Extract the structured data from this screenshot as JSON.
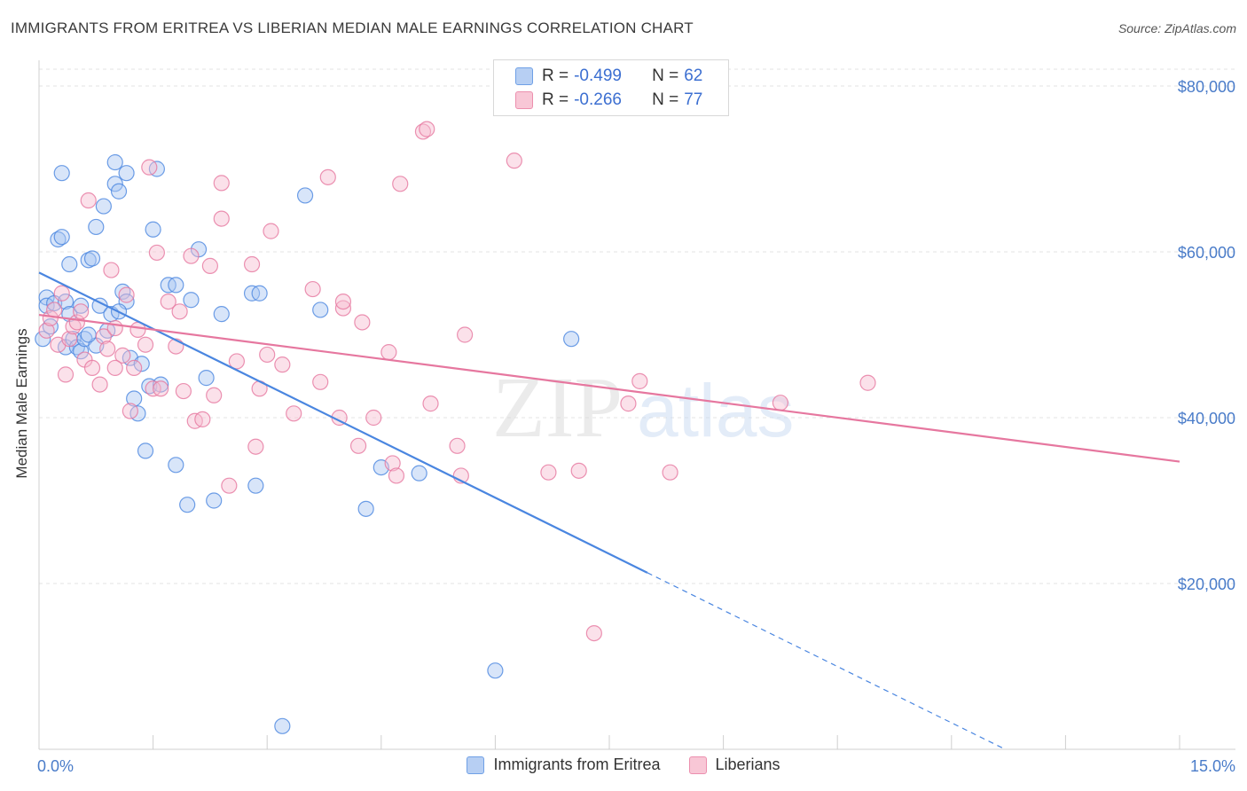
{
  "header": {
    "title": "IMMIGRANTS FROM ERITREA VS LIBERIAN MEDIAN MALE EARNINGS CORRELATION CHART",
    "source": "Source: ZipAtlas.com"
  },
  "watermark": {
    "zip": "ZIP",
    "atlas": "atlas"
  },
  "legend": {
    "rows": [
      {
        "r_label": "R =",
        "r_value": "-0.499",
        "n_label": "N =",
        "n_value": "62",
        "color": "#6fa0e6",
        "fill": "#b7cff3"
      },
      {
        "r_label": "R =",
        "r_value": "-0.266",
        "n_label": "N =",
        "n_value": "77",
        "color": "#ec8fae",
        "fill": "#f8c7d6"
      }
    ]
  },
  "bottom_legend": {
    "items": [
      {
        "label": "Immigrants from Eritrea",
        "color": "#6fa0e6",
        "fill": "#b7cff3"
      },
      {
        "label": "Liberians",
        "color": "#ec8fae",
        "fill": "#f8c7d6"
      }
    ]
  },
  "chart_data": {
    "type": "scatter",
    "title": "IMMIGRANTS FROM ERITREA VS LIBERIAN MEDIAN MALE EARNINGS CORRELATION CHART",
    "xlabel": "",
    "ylabel": "Median Male Earnings",
    "xlim": [
      0,
      15
    ],
    "ylim": [
      0,
      82000
    ],
    "x_tick_labels": [
      "0.0%",
      "15.0%"
    ],
    "y_ticks": [
      20000,
      40000,
      60000,
      80000
    ],
    "y_tick_labels": [
      "$20,000",
      "$40,000",
      "$60,000",
      "$80,000"
    ],
    "grid": true,
    "series": [
      {
        "name": "Immigrants from Eritrea",
        "color": "#4a86e0",
        "fill": "#a9c6f1",
        "trend": {
          "x0": 0,
          "y0": 57500,
          "x1": 8.0,
          "y1": 21300,
          "dash_to_x": 12.7
        },
        "points": [
          [
            0.05,
            49500
          ],
          [
            0.1,
            54500
          ],
          [
            0.1,
            53500
          ],
          [
            0.15,
            51000
          ],
          [
            0.2,
            53800
          ],
          [
            0.25,
            61500
          ],
          [
            0.3,
            61800
          ],
          [
            0.3,
            69500
          ],
          [
            0.35,
            54000
          ],
          [
            0.35,
            48500
          ],
          [
            0.4,
            52500
          ],
          [
            0.4,
            58500
          ],
          [
            0.45,
            49500
          ],
          [
            0.5,
            48500
          ],
          [
            0.55,
            53500
          ],
          [
            0.55,
            48000
          ],
          [
            0.6,
            49500
          ],
          [
            0.65,
            59000
          ],
          [
            0.7,
            59200
          ],
          [
            0.75,
            48700
          ],
          [
            0.75,
            63000
          ],
          [
            0.8,
            53500
          ],
          [
            0.85,
            65500
          ],
          [
            0.9,
            50500
          ],
          [
            0.95,
            52500
          ],
          [
            1.0,
            68200
          ],
          [
            1.0,
            70800
          ],
          [
            1.05,
            67300
          ],
          [
            1.1,
            55200
          ],
          [
            1.15,
            54000
          ],
          [
            1.15,
            69500
          ],
          [
            1.2,
            47200
          ],
          [
            1.25,
            42300
          ],
          [
            1.3,
            40500
          ],
          [
            1.35,
            46500
          ],
          [
            1.4,
            36000
          ],
          [
            1.45,
            43800
          ],
          [
            1.5,
            62700
          ],
          [
            1.55,
            70000
          ],
          [
            1.6,
            44000
          ],
          [
            1.7,
            56000
          ],
          [
            1.8,
            34300
          ],
          [
            1.8,
            56000
          ],
          [
            1.95,
            29500
          ],
          [
            2.0,
            54200
          ],
          [
            2.1,
            60300
          ],
          [
            2.2,
            44800
          ],
          [
            2.3,
            30000
          ],
          [
            2.4,
            52500
          ],
          [
            2.8,
            55000
          ],
          [
            2.85,
            31800
          ],
          [
            2.9,
            55000
          ],
          [
            3.2,
            2800
          ],
          [
            3.5,
            66800
          ],
          [
            3.7,
            53000
          ],
          [
            4.3,
            29000
          ],
          [
            4.5,
            34000
          ],
          [
            5.0,
            33300
          ],
          [
            6.0,
            9500
          ],
          [
            7.0,
            49500
          ],
          [
            1.05,
            52800
          ],
          [
            0.65,
            50000
          ]
        ]
      },
      {
        "name": "Liberians",
        "color": "#e6779f",
        "fill": "#f6bdd0",
        "trend": {
          "x0": 0,
          "y0": 52400,
          "x1": 15,
          "y1": 34700
        },
        "points": [
          [
            0.1,
            50500
          ],
          [
            0.15,
            52000
          ],
          [
            0.2,
            53000
          ],
          [
            0.25,
            48800
          ],
          [
            0.3,
            55000
          ],
          [
            0.35,
            45200
          ],
          [
            0.4,
            49500
          ],
          [
            0.45,
            51000
          ],
          [
            0.5,
            51500
          ],
          [
            0.55,
            52800
          ],
          [
            0.6,
            47000
          ],
          [
            0.65,
            66200
          ],
          [
            0.7,
            46000
          ],
          [
            0.8,
            44000
          ],
          [
            0.85,
            49800
          ],
          [
            0.9,
            48300
          ],
          [
            0.95,
            57800
          ],
          [
            1.0,
            50800
          ],
          [
            1.1,
            47500
          ],
          [
            1.15,
            54800
          ],
          [
            1.2,
            40800
          ],
          [
            1.25,
            46000
          ],
          [
            1.3,
            50600
          ],
          [
            1.4,
            48800
          ],
          [
            1.45,
            70200
          ],
          [
            1.5,
            43500
          ],
          [
            1.55,
            59900
          ],
          [
            1.6,
            43500
          ],
          [
            1.7,
            54000
          ],
          [
            1.8,
            48600
          ],
          [
            1.85,
            52800
          ],
          [
            1.9,
            43200
          ],
          [
            2.0,
            59500
          ],
          [
            2.05,
            39600
          ],
          [
            2.15,
            39800
          ],
          [
            2.25,
            58300
          ],
          [
            2.3,
            42700
          ],
          [
            2.4,
            68300
          ],
          [
            2.4,
            64000
          ],
          [
            2.5,
            31800
          ],
          [
            2.6,
            46800
          ],
          [
            2.8,
            58500
          ],
          [
            2.85,
            36500
          ],
          [
            2.9,
            43500
          ],
          [
            3.0,
            47600
          ],
          [
            3.05,
            62500
          ],
          [
            3.2,
            46400
          ],
          [
            3.35,
            40500
          ],
          [
            3.6,
            55500
          ],
          [
            3.7,
            44300
          ],
          [
            3.8,
            69000
          ],
          [
            3.95,
            40000
          ],
          [
            4.0,
            53200
          ],
          [
            4.0,
            54000
          ],
          [
            4.2,
            36600
          ],
          [
            4.25,
            51500
          ],
          [
            4.4,
            40000
          ],
          [
            4.6,
            47900
          ],
          [
            4.65,
            34500
          ],
          [
            4.7,
            33000
          ],
          [
            4.75,
            68200
          ],
          [
            5.05,
            74500
          ],
          [
            5.1,
            74800
          ],
          [
            5.15,
            41700
          ],
          [
            5.5,
            36600
          ],
          [
            5.55,
            33000
          ],
          [
            5.6,
            50000
          ],
          [
            6.25,
            71000
          ],
          [
            6.7,
            33400
          ],
          [
            7.1,
            33600
          ],
          [
            7.3,
            14000
          ],
          [
            7.75,
            41700
          ],
          [
            7.9,
            44400
          ],
          [
            8.3,
            33400
          ],
          [
            9.75,
            41800
          ],
          [
            10.9,
            44200
          ],
          [
            1.0,
            46000
          ]
        ]
      }
    ]
  }
}
